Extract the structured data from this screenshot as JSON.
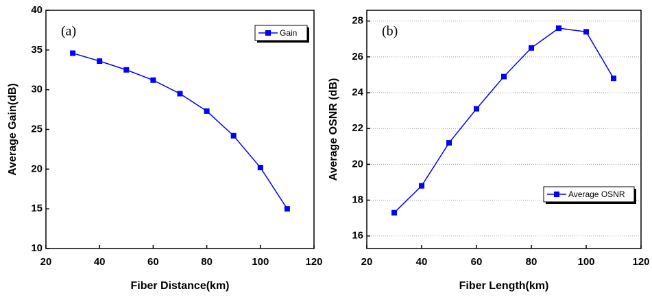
{
  "chart_data": [
    {
      "type": "line",
      "annotation": "(a)",
      "x_label": "Fiber Distance(km)",
      "y_label": "Average Gain(dB)",
      "x": [
        30,
        40,
        50,
        60,
        70,
        80,
        90,
        100,
        110
      ],
      "series": [
        {
          "name": "Gain",
          "color": "#0000ff",
          "values": [
            34.6,
            33.6,
            32.5,
            31.2,
            29.5,
            27.3,
            24.2,
            20.2,
            15.0
          ]
        }
      ],
      "xlim": [
        20,
        120
      ],
      "xticks": [
        20,
        40,
        60,
        80,
        100,
        120
      ],
      "ylim": [
        10,
        40
      ],
      "yticks": [
        10,
        15,
        20,
        25,
        30,
        35,
        40
      ],
      "grid": false,
      "legend": "upper right"
    },
    {
      "type": "line",
      "annotation": "(b)",
      "x_label": "Fiber Length(km)",
      "y_label": "Average OSNR (dB)",
      "x": [
        30,
        40,
        50,
        60,
        70,
        80,
        90,
        100,
        110
      ],
      "series": [
        {
          "name": "Average OSNR",
          "color": "#0000ff",
          "values": [
            17.3,
            18.8,
            21.2,
            23.1,
            24.9,
            26.5,
            27.6,
            27.4,
            24.8
          ]
        }
      ],
      "xlim": [
        20,
        120
      ],
      "xticks": [
        20,
        40,
        60,
        80,
        100,
        120
      ],
      "ylim": [
        15.3,
        28.6
      ],
      "yticks": [
        16,
        18,
        20,
        22,
        24,
        26,
        28
      ],
      "grid": true,
      "legend": "lower right"
    }
  ]
}
